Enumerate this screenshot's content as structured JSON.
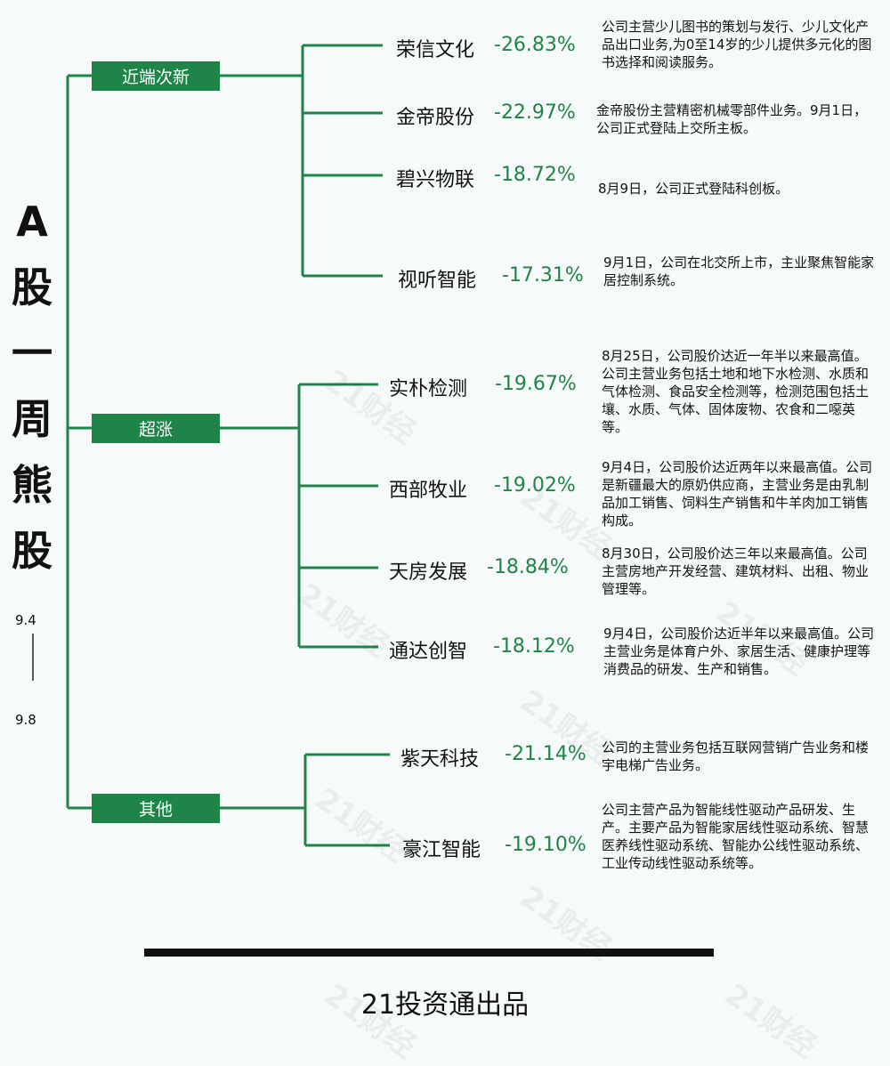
{
  "title_chars": [
    "A",
    "股",
    "一",
    "周",
    "熊",
    "股"
  ],
  "date_start": "9.4",
  "date_end": "9.8",
  "watermark": "21财经",
  "categories": [
    {
      "label": "近端次新",
      "stocks": [
        {
          "name": "荣信文化",
          "change": "-26.83%",
          "desc": "公司主营少儿图书的策划与发行、少儿文化产品出口业务,为0至14岁的少儿提供多元化的图书选择和阅读服务。"
        },
        {
          "name": "金帝股份",
          "change": "-22.97%",
          "desc": "金帝股份主营精密机械零部件业务。9月1日，公司正式登陆上交所主板。"
        },
        {
          "name": "碧兴物联",
          "change": "-18.72%",
          "desc": "8月9日，公司正式登陆科创板。"
        },
        {
          "name": "视听智能",
          "change": "-17.31%",
          "desc": "9月1日，公司在北交所上市，主业聚焦智能家居控制系统。"
        }
      ]
    },
    {
      "label": "超涨",
      "stocks": [
        {
          "name": "实朴检测",
          "change": "-19.67%",
          "desc": "8月25日，公司股价达近一年半以来最高值。公司主营业务包括土地和地下水检测、水质和气体检测、食品安全检测等，检测范围包括土壤、水质、气体、固体废物、农食和二噁英等。"
        },
        {
          "name": "西部牧业",
          "change": "-19.02%",
          "desc": "9月4日，公司股价达近两年以来最高值。公司是新疆最大的原奶供应商，主营业务是由乳制品加工销售、饲料生产销售和牛羊肉加工销售构成。"
        },
        {
          "name": "天房发展",
          "change": "-18.84%",
          "desc": "8月30日，公司股价达三年以来最高值。公司主营房地产开发经营、建筑材料、出租、物业管理等。"
        },
        {
          "name": "通达创智",
          "change": "-18.12%",
          "desc": "9月4日，公司股价达近半年以来最高值。公司主营业务是体育户外、家居生活、健康护理等消费品的研发、生产和销售。"
        }
      ]
    },
    {
      "label": "其他",
      "stocks": [
        {
          "name": "紫天科技",
          "change": "-21.14%",
          "desc": "公司的主营业务包括互联网营销广告业务和楼宇电梯广告业务。"
        },
        {
          "name": "豪江智能",
          "change": "-19.10%",
          "desc": "公司主营产品为智能线性驱动产品研发、生产。主要产品为智能家居线性驱动系统、智慧医养线性驱动系统、智能办公线性驱动系统、工业传动线性驱动系统等。"
        }
      ]
    }
  ],
  "footer": "21投资通出品",
  "colors": {
    "accent": "#1f8448",
    "text": "#111111",
    "background": "#f7fafb"
  }
}
